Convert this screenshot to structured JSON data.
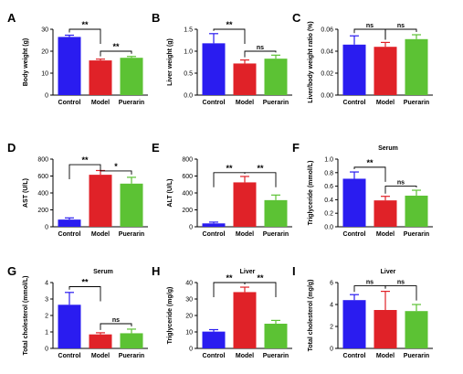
{
  "colors": {
    "Control": "#2a1cf0",
    "Model": "#e02228",
    "Puerarin": "#5cc234"
  },
  "chart_data": [
    {
      "type": "bar",
      "letter": "A",
      "title": "",
      "ylabel": "Body weight (g)",
      "categories": [
        "Control",
        "Model",
        "Puerarin"
      ],
      "values": [
        26.5,
        15.8,
        17.0
      ],
      "errors": [
        0.8,
        0.6,
        0.6
      ],
      "ylim": [
        0,
        30
      ],
      "yticks": [
        "0",
        "10",
        "20",
        "30"
      ],
      "yticks_values": [
        0,
        10,
        20,
        30
      ],
      "sig": [
        {
          "from": 0,
          "to": 1,
          "y": 30,
          "label": "**"
        },
        {
          "from": 1,
          "to": 2,
          "y": 20,
          "label": "**"
        }
      ]
    },
    {
      "type": "bar",
      "letter": "B",
      "title": "",
      "ylabel": "Liver weight (g)",
      "categories": [
        "Control",
        "Model",
        "Puerarin"
      ],
      "values": [
        1.18,
        0.72,
        0.83
      ],
      "errors": [
        0.22,
        0.08,
        0.08
      ],
      "ylim": [
        0,
        1.5
      ],
      "yticks": [
        "0.0",
        "0.5",
        "1.0",
        "1.5"
      ],
      "yticks_values": [
        0,
        0.5,
        1.0,
        1.5
      ],
      "sig": [
        {
          "from": 0,
          "to": 1,
          "y": 1.5,
          "label": "**"
        },
        {
          "from": 1,
          "to": 2,
          "y": 1.0,
          "label": "ns"
        }
      ]
    },
    {
      "type": "bar",
      "letter": "C",
      "title": "",
      "ylabel": "Liver/body weight ratio (%)",
      "categories": [
        "Control",
        "Model",
        "Puerarin"
      ],
      "values": [
        0.046,
        0.044,
        0.051
      ],
      "errors": [
        0.008,
        0.004,
        0.004
      ],
      "ylim": [
        0,
        0.06
      ],
      "yticks": [
        "0.00",
        "0.02",
        "0.04",
        "0.06"
      ],
      "yticks_values": [
        0,
        0.02,
        0.04,
        0.06
      ],
      "sig": [
        {
          "from": 0,
          "to": 1,
          "y": 0.06,
          "label": "ns"
        },
        {
          "from": 1,
          "to": 2,
          "y": 0.06,
          "label": "ns"
        }
      ]
    },
    {
      "type": "bar",
      "letter": "D",
      "title": "",
      "ylabel": "AST (U/L)",
      "categories": [
        "Control",
        "Model",
        "Puerarin"
      ],
      "values": [
        85,
        615,
        510
      ],
      "errors": [
        20,
        50,
        75
      ],
      "ylim": [
        0,
        800
      ],
      "yticks": [
        "0",
        "200",
        "400",
        "600",
        "800"
      ],
      "yticks_values": [
        0,
        200,
        400,
        600,
        800
      ],
      "sig": [
        {
          "from": 0,
          "to": 1,
          "y": 735,
          "label": "**"
        },
        {
          "from": 1,
          "to": 2,
          "y": 660,
          "label": "*"
        }
      ]
    },
    {
      "type": "bar",
      "letter": "E",
      "title": "",
      "ylabel": "ALT (U/L)",
      "categories": [
        "Control",
        "Model",
        "Puerarin"
      ],
      "values": [
        40,
        525,
        315
      ],
      "errors": [
        15,
        70,
        60
      ],
      "ylim": [
        0,
        800
      ],
      "yticks": [
        "0",
        "200",
        "400",
        "600",
        "800"
      ],
      "yticks_values": [
        0,
        200,
        400,
        600,
        800
      ],
      "sig": [
        {
          "from": 0,
          "to": 1,
          "y": 640,
          "label": "**"
        },
        {
          "from": 1,
          "to": 2,
          "y": 640,
          "label": "**"
        }
      ]
    },
    {
      "type": "bar",
      "letter": "F",
      "title": "Serum",
      "ylabel": "Triglyceride (mmol/L)",
      "categories": [
        "Control",
        "Model",
        "Puerarin"
      ],
      "values": [
        0.71,
        0.39,
        0.46
      ],
      "errors": [
        0.1,
        0.06,
        0.08
      ],
      "ylim": [
        0,
        1.0
      ],
      "yticks": [
        "0.0",
        "0.2",
        "0.4",
        "0.6",
        "0.8",
        "1.0"
      ],
      "yticks_values": [
        0,
        0.2,
        0.4,
        0.6,
        0.8,
        1.0
      ],
      "sig": [
        {
          "from": 0,
          "to": 1,
          "y": 0.88,
          "label": "**"
        },
        {
          "from": 1,
          "to": 2,
          "y": 0.6,
          "label": "ns"
        }
      ]
    },
    {
      "type": "bar",
      "letter": "G",
      "title": "Serum",
      "ylabel": "Total cholesterol (mmol/L)",
      "categories": [
        "Control",
        "Model",
        "Puerarin"
      ],
      "values": [
        2.65,
        0.85,
        0.92
      ],
      "errors": [
        0.75,
        0.1,
        0.25
      ],
      "ylim": [
        0,
        4
      ],
      "yticks": [
        "0",
        "1",
        "2",
        "3",
        "4"
      ],
      "yticks_values": [
        0,
        1,
        2,
        3,
        4
      ],
      "sig": [
        {
          "from": 0,
          "to": 1,
          "y": 3.75,
          "label": "**"
        },
        {
          "from": 1,
          "to": 2,
          "y": 1.5,
          "label": "ns"
        }
      ]
    },
    {
      "type": "bar",
      "letter": "H",
      "title": "Liver",
      "ylabel": "Triglyceride (mg/g)",
      "categories": [
        "Control",
        "Model",
        "Puerarin"
      ],
      "values": [
        10.2,
        34.2,
        15.0
      ],
      "errors": [
        1.2,
        3.0,
        2.0
      ],
      "ylim": [
        0,
        40
      ],
      "yticks": [
        "0",
        "10",
        "20",
        "30",
        "40"
      ],
      "yticks_values": [
        0,
        10,
        20,
        30,
        40
      ],
      "sig": [
        {
          "from": 0,
          "to": 1,
          "y": 40,
          "label": "**"
        },
        {
          "from": 1,
          "to": 2,
          "y": 40,
          "label": "**"
        }
      ]
    },
    {
      "type": "bar",
      "letter": "I",
      "title": "Liver",
      "ylabel": "Total cholesterol (mg/g)",
      "categories": [
        "Control",
        "Model",
        "Puerarin"
      ],
      "values": [
        4.4,
        3.5,
        3.4
      ],
      "errors": [
        0.5,
        1.7,
        0.6
      ],
      "ylim": [
        0,
        6
      ],
      "yticks": [
        "0",
        "2",
        "4",
        "6"
      ],
      "yticks_values": [
        0,
        2,
        4,
        6
      ],
      "sig": [
        {
          "from": 0,
          "to": 1,
          "y": 5.7,
          "label": "ns"
        },
        {
          "from": 1,
          "to": 2,
          "y": 5.7,
          "label": "ns"
        }
      ]
    }
  ]
}
